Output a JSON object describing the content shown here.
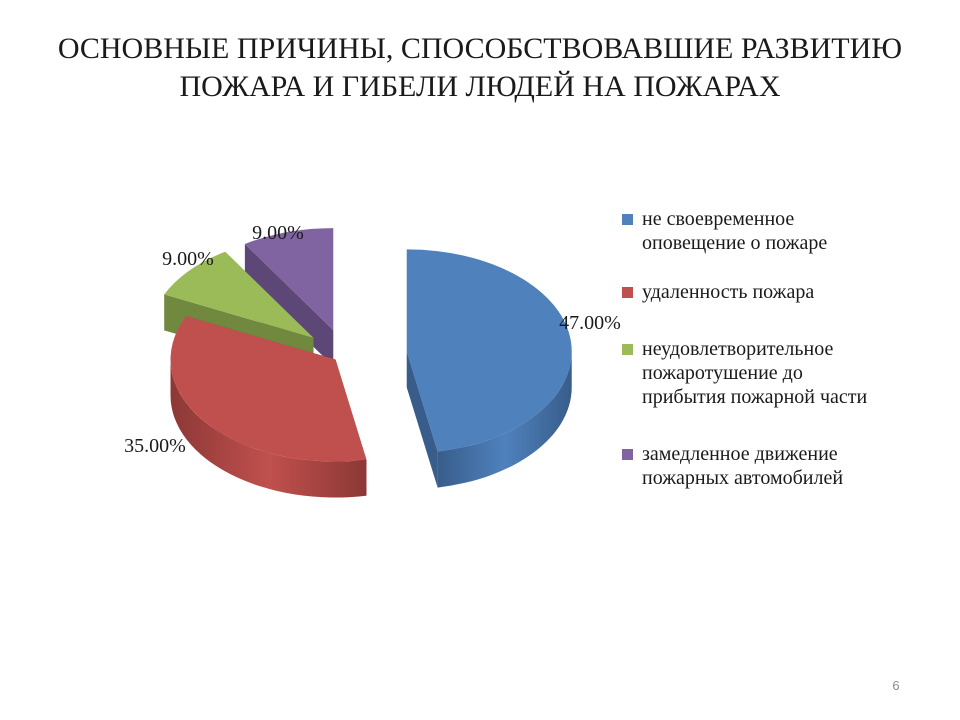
{
  "title_line1": "ОСНОВНЫЕ ПРИЧИНЫ, СПОСОБСТВОВАВШИЕ РАЗВИТИЮ",
  "title_line2": "ПОЖАРА И ГИБЕЛИ ЛЮДЕЙ НА ПОЖАРАХ",
  "page_number": "6",
  "chart_data": {
    "type": "pie",
    "style": "3d-exploded",
    "categories": [
      "не своевременное оповещение о пожаре",
      "удаленность пожара",
      "неудовлетворительное пожаротушение до прибытия пожарной части",
      "замедленное движение пожарных автомобилей"
    ],
    "legend_lines": [
      [
        "не своевременное",
        "оповещение о пожаре"
      ],
      [
        "удаленность пожара"
      ],
      [
        "неудовлетворительное",
        "пожаротушение до",
        "прибытия пожарной части"
      ],
      [
        "замедленное движение",
        "пожарных автомобилей"
      ]
    ],
    "values": [
      47,
      35,
      9,
      9
    ],
    "data_labels": [
      "47.00%",
      "35.00%",
      "9.00%",
      "9.00%"
    ],
    "colors": [
      "#4F81BD",
      "#C0504D",
      "#9BBB59",
      "#8064A2"
    ],
    "side_colors": [
      "#385D8A",
      "#8C3836",
      "#71893F",
      "#5C4776"
    ],
    "legend_position": "right"
  }
}
